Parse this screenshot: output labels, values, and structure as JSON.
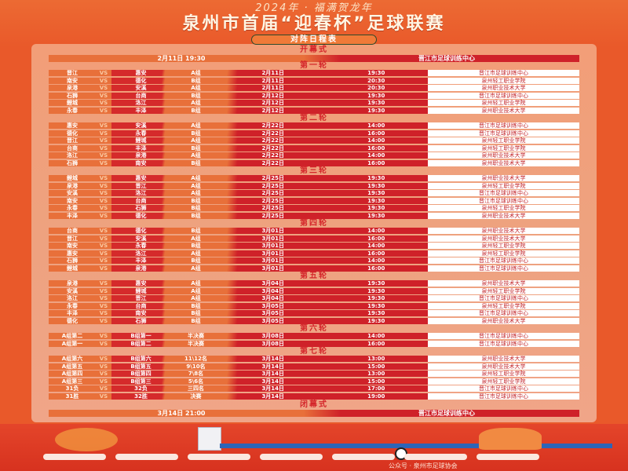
{
  "header": {
    "tagline": "2024年 · 福满贺龙年",
    "title": "泉州市首届“迎春杯”足球联赛",
    "subtitle": "对阵日程表"
  },
  "opening": {
    "label": "开幕式",
    "datetime": "2月11日 19:30",
    "venue": "晋江市足球训练中心"
  },
  "rounds": [
    {
      "label": "第一轮",
      "matches": [
        {
          "home": "晋江",
          "vs": "VS",
          "away": "惠安",
          "group": "A组",
          "date": "2月11日",
          "time": "19:30",
          "venue": "晋江市足球训练中心"
        },
        {
          "home": "南安",
          "vs": "VS",
          "away": "德化",
          "group": "B组",
          "date": "2月11日",
          "time": "20:30",
          "venue": "泉州轻工职业学院"
        },
        {
          "home": "泉港",
          "vs": "VS",
          "away": "安溪",
          "group": "A组",
          "date": "2月11日",
          "time": "20:30",
          "venue": "泉州职业技术大学"
        },
        {
          "home": "石狮",
          "vs": "VS",
          "away": "台商",
          "group": "B组",
          "date": "2月12日",
          "time": "19:30",
          "venue": "晋江市足球训练中心"
        },
        {
          "home": "鲤城",
          "vs": "VS",
          "away": "洛江",
          "group": "A组",
          "date": "2月12日",
          "time": "19:30",
          "venue": "泉州轻工职业学院"
        },
        {
          "home": "永春",
          "vs": "VS",
          "away": "丰泽",
          "group": "B组",
          "date": "2月12日",
          "time": "19:30",
          "venue": "泉州职业技术大学"
        }
      ]
    },
    {
      "label": "第二轮",
      "matches": [
        {
          "home": "惠安",
          "vs": "VS",
          "away": "安溪",
          "group": "A组",
          "date": "2月22日",
          "time": "14:00",
          "venue": "晋江市足球训练中心"
        },
        {
          "home": "德化",
          "vs": "VS",
          "away": "永春",
          "group": "B组",
          "date": "2月22日",
          "time": "16:00",
          "venue": "晋江市足球训练中心"
        },
        {
          "home": "晋江",
          "vs": "VS",
          "away": "鲤城",
          "group": "A组",
          "date": "2月22日",
          "time": "14:00",
          "venue": "泉州轻工职业学院"
        },
        {
          "home": "台商",
          "vs": "VS",
          "away": "丰泽",
          "group": "B组",
          "date": "2月22日",
          "time": "16:00",
          "venue": "泉州轻工职业学院"
        },
        {
          "home": "洛江",
          "vs": "VS",
          "away": "泉港",
          "group": "A组",
          "date": "2月22日",
          "time": "14:00",
          "venue": "泉州职业技术大学"
        },
        {
          "home": "石狮",
          "vs": "VS",
          "away": "南安",
          "group": "B组",
          "date": "2月22日",
          "time": "16:00",
          "venue": "泉州职业技术大学"
        }
      ]
    },
    {
      "label": "第三轮",
      "matches": [
        {
          "home": "鲤城",
          "vs": "VS",
          "away": "惠安",
          "group": "A组",
          "date": "2月25日",
          "time": "19:30",
          "venue": "泉州职业技术大学"
        },
        {
          "home": "泉港",
          "vs": "VS",
          "away": "晋江",
          "group": "A组",
          "date": "2月25日",
          "time": "19:30",
          "venue": "泉州轻工职业学院"
        },
        {
          "home": "安溪",
          "vs": "VS",
          "away": "洛江",
          "group": "A组",
          "date": "2月25日",
          "time": "19:30",
          "venue": "晋江市足球训练中心"
        },
        {
          "home": "南安",
          "vs": "VS",
          "away": "台商",
          "group": "B组",
          "date": "2月25日",
          "time": "19:30",
          "venue": "晋江市足球训练中心"
        },
        {
          "home": "永春",
          "vs": "VS",
          "away": "石狮",
          "group": "B组",
          "date": "2月25日",
          "time": "19:30",
          "venue": "泉州轻工职业学院"
        },
        {
          "home": "丰泽",
          "vs": "VS",
          "away": "德化",
          "group": "B组",
          "date": "2月25日",
          "time": "19:30",
          "venue": "泉州职业技术大学"
        }
      ]
    },
    {
      "label": "第四轮",
      "matches": [
        {
          "home": "台商",
          "vs": "VS",
          "away": "德化",
          "group": "B组",
          "date": "3月01日",
          "time": "14:00",
          "venue": "泉州职业技术大学"
        },
        {
          "home": "晋江",
          "vs": "VS",
          "away": "安溪",
          "group": "A组",
          "date": "3月01日",
          "time": "16:00",
          "venue": "泉州职业技术大学"
        },
        {
          "home": "南安",
          "vs": "VS",
          "away": "永春",
          "group": "B组",
          "date": "3月01日",
          "time": "14:00",
          "venue": "泉州轻工职业学院"
        },
        {
          "home": "惠安",
          "vs": "VS",
          "away": "洛江",
          "group": "A组",
          "date": "3月01日",
          "time": "16:00",
          "venue": "泉州轻工职业学院"
        },
        {
          "home": "石狮",
          "vs": "VS",
          "away": "丰泽",
          "group": "B组",
          "date": "3月01日",
          "time": "14:00",
          "venue": "晋江市足球训练中心"
        },
        {
          "home": "鲤城",
          "vs": "VS",
          "away": "泉港",
          "group": "A组",
          "date": "3月01日",
          "time": "16:00",
          "venue": "晋江市足球训练中心"
        }
      ]
    },
    {
      "label": "第五轮",
      "matches": [
        {
          "home": "泉港",
          "vs": "VS",
          "away": "惠安",
          "group": "A组",
          "date": "3月04日",
          "time": "19:30",
          "venue": "泉州职业技术大学"
        },
        {
          "home": "安溪",
          "vs": "VS",
          "away": "鲤城",
          "group": "A组",
          "date": "3月04日",
          "time": "19:30",
          "venue": "泉州轻工职业学院"
        },
        {
          "home": "洛江",
          "vs": "VS",
          "away": "晋江",
          "group": "A组",
          "date": "3月04日",
          "time": "19:30",
          "venue": "晋江市足球训练中心"
        },
        {
          "home": "永春",
          "vs": "VS",
          "away": "台商",
          "group": "B组",
          "date": "3月05日",
          "time": "19:30",
          "venue": "泉州轻工职业学院"
        },
        {
          "home": "丰泽",
          "vs": "VS",
          "away": "南安",
          "group": "B组",
          "date": "3月05日",
          "time": "19:30",
          "venue": "晋江市足球训练中心"
        },
        {
          "home": "德化",
          "vs": "VS",
          "away": "石狮",
          "group": "B组",
          "date": "3月05日",
          "time": "19:30",
          "venue": "泉州职业技术大学"
        }
      ]
    },
    {
      "label": "第六轮",
      "matches": [
        {
          "home": "A组第二",
          "vs": "VS",
          "away": "B组第一",
          "group": "半决赛",
          "date": "3月08日",
          "time": "14:00",
          "venue": "晋江市足球训练中心"
        },
        {
          "home": "A组第一",
          "vs": "VS",
          "away": "B组第二",
          "group": "半决赛",
          "date": "3月08日",
          "time": "16:00",
          "venue": "晋江市足球训练中心"
        }
      ]
    },
    {
      "label": "第七轮",
      "matches": [
        {
          "home": "A组第六",
          "vs": "VS",
          "away": "B组第六",
          "group": "11\\12名",
          "date": "3月14日",
          "time": "13:00",
          "venue": "泉州职业技术大学"
        },
        {
          "home": "A组第五",
          "vs": "VS",
          "away": "B组第五",
          "group": "9\\10名",
          "date": "3月14日",
          "time": "15:00",
          "venue": "泉州职业技术大学"
        },
        {
          "home": "A组第四",
          "vs": "VS",
          "away": "B组第四",
          "group": "7\\8名",
          "date": "3月14日",
          "time": "13:00",
          "venue": "泉州轻工职业学院"
        },
        {
          "home": "A组第三",
          "vs": "VS",
          "away": "B组第三",
          "group": "5\\6名",
          "date": "3月14日",
          "time": "15:00",
          "venue": "泉州轻工职业学院"
        },
        {
          "home": "31负",
          "vs": "VS",
          "away": "32负",
          "group": "三四名",
          "date": "3月14日",
          "time": "17:00",
          "venue": "晋江市足球训练中心"
        },
        {
          "home": "31胜",
          "vs": "VS",
          "away": "32胜",
          "group": "决赛",
          "date": "3月14日",
          "time": "19:00",
          "venue": "晋江市足球训练中心"
        }
      ]
    }
  ],
  "closing": {
    "label": "闭幕式",
    "datetime": "3月14日 21:00",
    "venue": "晋江市足球训练中心"
  },
  "footer": {
    "text": "公众号 · 泉州市足球协会"
  },
  "colors": {
    "background": "#e9592a",
    "panel": "#eea27f",
    "red": "#cf2129",
    "orange": "#e8703a",
    "venue_bg": "#ffffff"
  }
}
